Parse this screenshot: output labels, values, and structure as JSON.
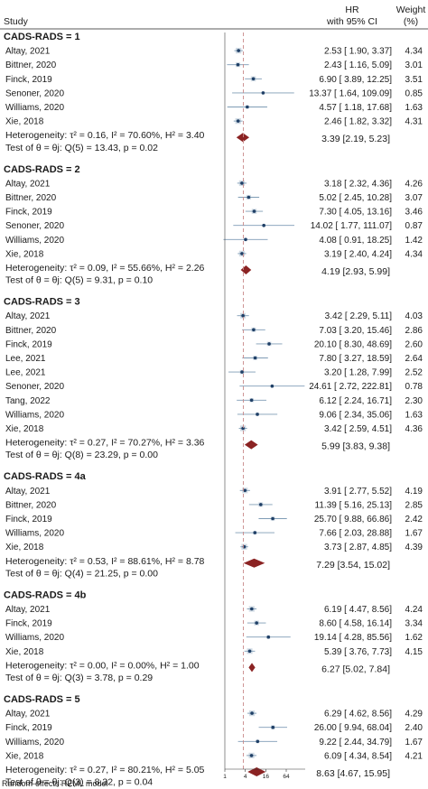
{
  "header": {
    "study": "Study",
    "hr": "HR",
    "ci": "with 95% CI",
    "weight": "Weight",
    "weight_unit": "(%)"
  },
  "footnote": "Random-effects REML model",
  "chart_data": {
    "type": "forest",
    "x_scale": "log",
    "xticks": [
      "1",
      "4",
      "16",
      "64"
    ],
    "reference_line": 1,
    "pooled_line": 3.5,
    "groups": [
      {
        "title": "CADS-RADS = 1",
        "studies": [
          {
            "name": "Altay, 2021",
            "hr": 2.53,
            "lo": 1.9,
            "hi": 3.37,
            "ci": "2.53 [ 1.90,    3.37]",
            "weight": "4.34"
          },
          {
            "name": "Bittner, 2020",
            "hr": 2.43,
            "lo": 1.16,
            "hi": 5.09,
            "ci": "2.43 [ 1.16,    5.09]",
            "weight": "3.01"
          },
          {
            "name": "Finck, 2019",
            "hr": 6.9,
            "lo": 3.89,
            "hi": 12.25,
            "ci": "6.90 [ 3.89,   12.25]",
            "weight": "3.51"
          },
          {
            "name": "Senoner, 2020",
            "hr": 13.37,
            "lo": 1.64,
            "hi": 109.09,
            "ci": "13.37 [ 1.64, 109.09]",
            "weight": "0.85"
          },
          {
            "name": "Williams, 2020",
            "hr": 4.57,
            "lo": 1.18,
            "hi": 17.68,
            "ci": "4.57 [ 1.18,   17.68]",
            "weight": "1.63"
          },
          {
            "name": "Xie, 2018",
            "hr": 2.46,
            "lo": 1.82,
            "hi": 3.32,
            "ci": "2.46 [ 1.82,    3.32]",
            "weight": "4.31"
          }
        ],
        "heterogeneity": "Heterogeneity: τ² = 0.16, I² = 70.60%, H² = 3.40",
        "test": "Test of θ = θj: Q(5) = 13.43, p = 0.02",
        "pooled": {
          "hr": 3.39,
          "lo": 2.19,
          "hi": 5.23,
          "ci": "3.39 [2.19,    5.23]"
        }
      },
      {
        "title": "CADS-RADS = 2",
        "studies": [
          {
            "name": "Altay, 2021",
            "hr": 3.18,
            "lo": 2.32,
            "hi": 4.36,
            "ci": "3.18 [ 2.32,    4.36]",
            "weight": "4.26"
          },
          {
            "name": "Bittner, 2020",
            "hr": 5.02,
            "lo": 2.45,
            "hi": 10.28,
            "ci": "5.02 [ 2.45,   10.28]",
            "weight": "3.07"
          },
          {
            "name": "Finck, 2019",
            "hr": 7.3,
            "lo": 4.05,
            "hi": 13.16,
            "ci": "7.30 [ 4.05,   13.16]",
            "weight": "3.46"
          },
          {
            "name": "Senoner, 2020",
            "hr": 14.02,
            "lo": 1.77,
            "hi": 111.07,
            "ci": "14.02 [ 1.77, 111.07]",
            "weight": "0.87"
          },
          {
            "name": "Williams, 2020",
            "hr": 4.08,
            "lo": 0.91,
            "hi": 18.25,
            "ci": "4.08 [ 0.91,   18.25]",
            "weight": "1.42"
          },
          {
            "name": "Xie, 2018",
            "hr": 3.19,
            "lo": 2.4,
            "hi": 4.24,
            "ci": "3.19 [ 2.40,    4.24]",
            "weight": "4.34"
          }
        ],
        "heterogeneity": "Heterogeneity: τ² = 0.09, I² = 55.66%, H² = 2.26",
        "test": "Test of θ = θj: Q(5) = 9.31, p = 0.10",
        "pooled": {
          "hr": 4.19,
          "lo": 2.93,
          "hi": 5.99,
          "ci": "4.19 [2.93,    5.99]"
        }
      },
      {
        "title": "CADS-RADS = 3",
        "studies": [
          {
            "name": "Altay, 2021",
            "hr": 3.42,
            "lo": 2.29,
            "hi": 5.11,
            "ci": "3.42 [ 2.29,    5.11]",
            "weight": "4.03"
          },
          {
            "name": "Bittner, 2020",
            "hr": 7.03,
            "lo": 3.2,
            "hi": 15.46,
            "ci": "7.03 [ 3.20,   15.46]",
            "weight": "2.86"
          },
          {
            "name": "Finck, 2019",
            "hr": 20.1,
            "lo": 8.3,
            "hi": 48.69,
            "ci": "20.10 [ 8.30,   48.69]",
            "weight": "2.60"
          },
          {
            "name": "Lee, 2021",
            "hr": 7.8,
            "lo": 3.27,
            "hi": 18.59,
            "ci": "7.80 [ 3.27,   18.59]",
            "weight": "2.64"
          },
          {
            "name": "Lee, 2021",
            "hr": 3.2,
            "lo": 1.28,
            "hi": 7.99,
            "ci": "3.20 [ 1.28,    7.99]",
            "weight": "2.52"
          },
          {
            "name": "Senoner, 2020",
            "hr": 24.61,
            "lo": 2.72,
            "hi": 222.81,
            "ci": "24.61 [ 2.72, 222.81]",
            "weight": "0.78"
          },
          {
            "name": "Tang, 2022",
            "hr": 6.12,
            "lo": 2.24,
            "hi": 16.71,
            "ci": "6.12 [ 2.24,   16.71]",
            "weight": "2.30"
          },
          {
            "name": "Williams, 2020",
            "hr": 9.06,
            "lo": 2.34,
            "hi": 35.06,
            "ci": "9.06 [ 2.34,   35.06]",
            "weight": "1.63"
          },
          {
            "name": "Xie, 2018",
            "hr": 3.42,
            "lo": 2.59,
            "hi": 4.51,
            "ci": "3.42 [ 2.59,    4.51]",
            "weight": "4.36"
          }
        ],
        "heterogeneity": "Heterogeneity: τ² = 0.27, I² = 70.27%, H² = 3.36",
        "test": "Test of θ = θj: Q(8) = 23.29, p = 0.00",
        "pooled": {
          "hr": 5.99,
          "lo": 3.83,
          "hi": 9.38,
          "ci": "5.99 [3.83,    9.38]"
        }
      },
      {
        "title": "CADS-RADS = 4a",
        "studies": [
          {
            "name": "Altay, 2021",
            "hr": 3.91,
            "lo": 2.77,
            "hi": 5.52,
            "ci": "3.91 [ 2.77,    5.52]",
            "weight": "4.19"
          },
          {
            "name": "Bittner, 2020",
            "hr": 11.39,
            "lo": 5.16,
            "hi": 25.13,
            "ci": "11.39 [ 5.16,   25.13]",
            "weight": "2.85"
          },
          {
            "name": "Finck, 2019",
            "hr": 25.7,
            "lo": 9.88,
            "hi": 66.86,
            "ci": "25.70 [ 9.88,   66.86]",
            "weight": "2.42"
          },
          {
            "name": "Williams, 2020",
            "hr": 7.66,
            "lo": 2.03,
            "hi": 28.88,
            "ci": "7.66 [ 2.03,   28.88]",
            "weight": "1.67"
          },
          {
            "name": "Xie, 2018",
            "hr": 3.73,
            "lo": 2.87,
            "hi": 4.85,
            "ci": "3.73 [ 2.87,    4.85]",
            "weight": "4.39"
          }
        ],
        "heterogeneity": "Heterogeneity: τ² = 0.53, I² = 88.61%, H² = 8.78",
        "test": "Test of θ = θj: Q(4) = 21.25, p = 0.00",
        "pooled": {
          "hr": 7.29,
          "lo": 3.54,
          "hi": 15.02,
          "ci": "7.29 [3.54,   15.02]"
        }
      },
      {
        "title": "CADS-RADS = 4b",
        "studies": [
          {
            "name": "Altay, 2021",
            "hr": 6.19,
            "lo": 4.47,
            "hi": 8.56,
            "ci": "6.19 [ 4.47,    8.56]",
            "weight": "4.24"
          },
          {
            "name": "Finck, 2019",
            "hr": 8.6,
            "lo": 4.58,
            "hi": 16.14,
            "ci": "8.60 [ 4.58,   16.14]",
            "weight": "3.34"
          },
          {
            "name": "Williams, 2020",
            "hr": 19.14,
            "lo": 4.28,
            "hi": 85.56,
            "ci": "19.14 [ 4.28,   85.56]",
            "weight": "1.62"
          },
          {
            "name": "Xie, 2018",
            "hr": 5.39,
            "lo": 3.76,
            "hi": 7.73,
            "ci": "5.39 [ 3.76,    7.73]",
            "weight": "4.15"
          }
        ],
        "heterogeneity": "Heterogeneity: τ² = 0.00, I² = 0.00%, H² = 1.00",
        "test": "Test of θ = θj: Q(3) = 3.78, p = 0.29",
        "pooled": {
          "hr": 6.27,
          "lo": 5.02,
          "hi": 7.84,
          "ci": "6.27 [5.02,    7.84]"
        }
      },
      {
        "title": "CADS-RADS = 5",
        "studies": [
          {
            "name": "Altay, 2021",
            "hr": 6.29,
            "lo": 4.62,
            "hi": 8.56,
            "ci": "6.29 [ 4.62,    8.56]",
            "weight": "4.29"
          },
          {
            "name": "Finck, 2019",
            "hr": 26.0,
            "lo": 9.94,
            "hi": 68.04,
            "ci": "26.00 [ 9.94,   68.04]",
            "weight": "2.40"
          },
          {
            "name": "Williams, 2020",
            "hr": 9.22,
            "lo": 2.44,
            "hi": 34.79,
            "ci": "9.22 [ 2.44,   34.79]",
            "weight": "1.67"
          },
          {
            "name": "Xie, 2018",
            "hr": 6.09,
            "lo": 4.34,
            "hi": 8.54,
            "ci": "6.09 [ 4.34,    8.54]",
            "weight": "4.21"
          }
        ],
        "heterogeneity": "Heterogeneity: τ² = 0.27, I² = 80.21%, H² = 5.05",
        "test": "Test of θ = θj: Q(3) = 8.32, p = 0.04",
        "pooled": {
          "hr": 8.63,
          "lo": 4.67,
          "hi": 15.95,
          "ci": "8.63 [4.67,   15.95]"
        }
      }
    ],
    "colors": {
      "marker": "#1f3f66",
      "ci_line": "#7f9cb5",
      "diamond": "#8b2323",
      "reference": "#c98a8a",
      "text": "#1a1a1a"
    }
  }
}
